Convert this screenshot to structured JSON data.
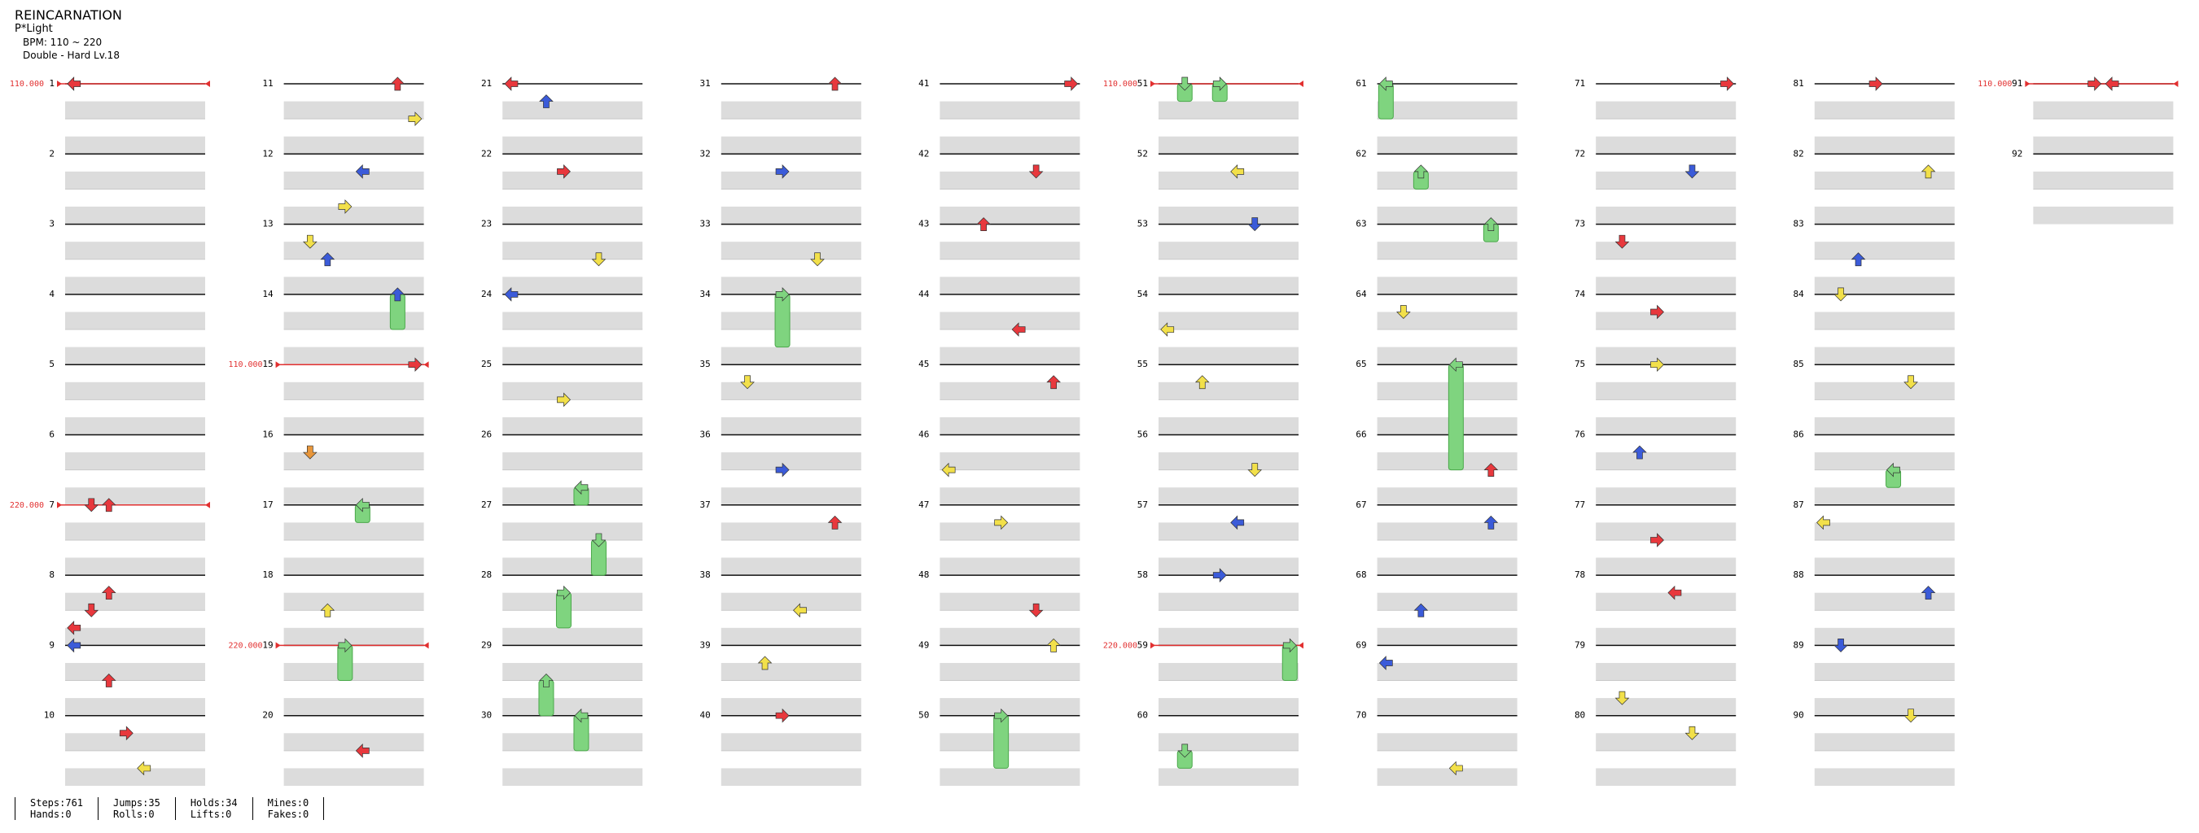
{
  "song": {
    "title": "REINCARNATION",
    "artist": "P*Light",
    "bpm_label": "BPM: 110 ~ 220",
    "difficulty_label": "Double - Hard Lv.18"
  },
  "chart_layout": {
    "type": "stepchart",
    "total_measures": 92,
    "measures_per_column": 10,
    "lanes": 8
  },
  "bpm_changes": [
    {
      "measure": 1,
      "label": "110.000"
    },
    {
      "measure": 7,
      "label": "220.000"
    },
    {
      "measure": 15,
      "label": "110.000"
    },
    {
      "measure": 19,
      "label": "220.000"
    },
    {
      "measure": 51,
      "label": "110.000"
    },
    {
      "measure": 59,
      "label": "220.000"
    },
    {
      "measure": 91,
      "label": "110.000"
    }
  ],
  "notes_sample": [
    {
      "measure": 1,
      "beat": 0,
      "lane": 0,
      "color": "red"
    },
    {
      "measure": 7,
      "beat": 0,
      "lane": 1,
      "color": "red"
    },
    {
      "measure": 7,
      "beat": 0,
      "lane": 2,
      "color": "red"
    },
    {
      "measure": 8,
      "beat": 1,
      "lane": 2,
      "color": "red"
    },
    {
      "measure": 8,
      "beat": 2,
      "lane": 1,
      "color": "red"
    },
    {
      "measure": 8,
      "beat": 3,
      "lane": 0,
      "color": "red"
    },
    {
      "measure": 9,
      "beat": 0,
      "lane": 0,
      "color": "blue"
    },
    {
      "measure": 9,
      "beat": 2,
      "lane": 2,
      "color": "red"
    },
    {
      "measure": 10,
      "beat": 1,
      "lane": 3,
      "color": "red"
    },
    {
      "measure": 10,
      "beat": 3,
      "lane": 4,
      "color": "yellow"
    },
    {
      "measure": 11,
      "beat": 0,
      "lane": 6,
      "color": "red"
    },
    {
      "measure": 11,
      "beat": 2,
      "lane": 7,
      "color": "yellow"
    },
    {
      "measure": 12,
      "beat": 1,
      "lane": 4,
      "color": "blue"
    },
    {
      "measure": 12,
      "beat": 3,
      "lane": 3,
      "color": "yellow"
    },
    {
      "measure": 13,
      "beat": 1,
      "lane": 1,
      "color": "yellow"
    },
    {
      "measure": 13,
      "beat": 2,
      "lane": 2,
      "color": "blue"
    },
    {
      "measure": 14,
      "beat": 0,
      "lane": 6,
      "color": "blue",
      "hold": 2
    },
    {
      "measure": 15,
      "beat": 0,
      "lane": 7,
      "color": "red"
    },
    {
      "measure": 16,
      "beat": 1,
      "lane": 1,
      "color": "orange"
    },
    {
      "measure": 17,
      "beat": 0,
      "lane": 4,
      "color": "green",
      "hold": 1
    },
    {
      "measure": 18,
      "beat": 2,
      "lane": 2,
      "color": "yellow"
    },
    {
      "measure": 19,
      "beat": 0,
      "lane": 3,
      "color": "green",
      "hold": 2
    },
    {
      "measure": 20,
      "beat": 2,
      "lane": 4,
      "color": "red"
    },
    {
      "measure": 21,
      "beat": 0,
      "lane": 0,
      "color": "red"
    },
    {
      "measure": 21,
      "beat": 1,
      "lane": 2,
      "color": "blue"
    },
    {
      "measure": 22,
      "beat": 1,
      "lane": 3,
      "color": "red"
    },
    {
      "measure": 23,
      "beat": 2,
      "lane": 5,
      "color": "yellow"
    },
    {
      "measure": 24,
      "beat": 0,
      "lane": 0,
      "color": "blue"
    },
    {
      "measure": 25,
      "beat": 2,
      "lane": 3,
      "color": "yellow"
    },
    {
      "measure": 26,
      "beat": 3,
      "lane": 4,
      "color": "green",
      "hold": 1
    },
    {
      "measure": 27,
      "beat": 2,
      "lane": 5,
      "color": "green",
      "hold": 2
    },
    {
      "measure": 28,
      "beat": 1,
      "lane": 3,
      "color": "green",
      "hold": 2
    },
    {
      "measure": 29,
      "beat": 2,
      "lane": 2,
      "color": "green",
      "hold": 2
    },
    {
      "measure": 30,
      "beat": 0,
      "lane": 4,
      "color": "green",
      "hold": 2
    },
    {
      "measure": 31,
      "beat": 0,
      "lane": 6,
      "color": "red"
    },
    {
      "measure": 32,
      "beat": 1,
      "lane": 3,
      "color": "blue"
    },
    {
      "measure": 33,
      "beat": 2,
      "lane": 5,
      "color": "yellow"
    },
    {
      "measure": 34,
      "beat": 0,
      "lane": 3,
      "color": "green",
      "hold": 3
    },
    {
      "measure": 35,
      "beat": 1,
      "lane": 1,
      "color": "yellow"
    },
    {
      "measure": 36,
      "beat": 2,
      "lane": 3,
      "color": "blue"
    },
    {
      "measure": 37,
      "beat": 1,
      "lane": 6,
      "color": "red"
    },
    {
      "measure": 38,
      "beat": 2,
      "lane": 4,
      "color": "yellow"
    },
    {
      "measure": 39,
      "beat": 1,
      "lane": 2,
      "color": "yellow"
    },
    {
      "measure": 40,
      "beat": 0,
      "lane": 3,
      "color": "red"
    },
    {
      "measure": 41,
      "beat": 0,
      "lane": 7,
      "color": "red"
    },
    {
      "measure": 42,
      "beat": 1,
      "lane": 5,
      "color": "red"
    },
    {
      "measure": 43,
      "beat": 0,
      "lane": 2,
      "color": "red"
    },
    {
      "measure": 44,
      "beat": 2,
      "lane": 4,
      "color": "red"
    },
    {
      "measure": 45,
      "beat": 1,
      "lane": 6,
      "color": "red"
    },
    {
      "measure": 46,
      "beat": 2,
      "lane": 0,
      "color": "yellow"
    },
    {
      "measure": 47,
      "beat": 1,
      "lane": 3,
      "color": "yellow"
    },
    {
      "measure": 48,
      "beat": 2,
      "lane": 5,
      "color": "red"
    },
    {
      "measure": 49,
      "beat": 0,
      "lane": 6,
      "color": "yellow"
    },
    {
      "measure": 50,
      "beat": 0,
      "lane": 3,
      "color": "green",
      "hold": 3
    },
    {
      "measure": 51,
      "beat": 0,
      "lane": 1,
      "color": "green",
      "hold": 1
    },
    {
      "measure": 51,
      "beat": 0,
      "lane": 3,
      "color": "green",
      "hold": 1
    },
    {
      "measure": 52,
      "beat": 1,
      "lane": 4,
      "color": "yellow"
    },
    {
      "measure": 53,
      "beat": 0,
      "lane": 5,
      "color": "blue"
    },
    {
      "measure": 54,
      "beat": 2,
      "lane": 0,
      "color": "yellow"
    },
    {
      "measure": 55,
      "beat": 1,
      "lane": 2,
      "color": "yellow"
    },
    {
      "measure": 56,
      "beat": 2,
      "lane": 5,
      "color": "yellow"
    },
    {
      "measure": 57,
      "beat": 1,
      "lane": 4,
      "color": "blue"
    },
    {
      "measure": 58,
      "beat": 0,
      "lane": 3,
      "color": "blue"
    },
    {
      "measure": 59,
      "beat": 0,
      "lane": 7,
      "color": "green",
      "hold": 2
    },
    {
      "measure": 60,
      "beat": 2,
      "lane": 1,
      "color": "green",
      "hold": 1
    },
    {
      "measure": 61,
      "beat": 0,
      "lane": 0,
      "color": "green",
      "hold": 2
    },
    {
      "measure": 62,
      "beat": 1,
      "lane": 2,
      "color": "green",
      "hold": 1
    },
    {
      "measure": 63,
      "beat": 0,
      "lane": 6,
      "color": "green",
      "hold": 1
    },
    {
      "measure": 64,
      "beat": 1,
      "lane": 1,
      "color": "yellow"
    },
    {
      "measure": 65,
      "beat": 0,
      "lane": 4,
      "color": "green",
      "hold": 6
    },
    {
      "measure": 66,
      "beat": 2,
      "lane": 6,
      "color": "red"
    },
    {
      "measure": 67,
      "beat": 1,
      "lane": 6,
      "color": "blue"
    },
    {
      "measure": 68,
      "beat": 2,
      "lane": 2,
      "color": "blue"
    },
    {
      "measure": 69,
      "beat": 1,
      "lane": 0,
      "color": "blue"
    },
    {
      "measure": 70,
      "beat": 3,
      "lane": 4,
      "color": "yellow"
    },
    {
      "measure": 71,
      "beat": 0,
      "lane": 7,
      "color": "red"
    },
    {
      "measure": 72,
      "beat": 1,
      "lane": 5,
      "color": "blue"
    },
    {
      "measure": 73,
      "beat": 1,
      "lane": 1,
      "color": "red"
    },
    {
      "measure": 74,
      "beat": 1,
      "lane": 3,
      "color": "red"
    },
    {
      "measure": 75,
      "beat": 0,
      "lane": 3,
      "color": "yellow"
    },
    {
      "measure": 76,
      "beat": 1,
      "lane": 2,
      "color": "blue"
    },
    {
      "measure": 77,
      "beat": 2,
      "lane": 3,
      "color": "red"
    },
    {
      "measure": 78,
      "beat": 1,
      "lane": 4,
      "color": "red"
    },
    {
      "measure": 79,
      "beat": 3,
      "lane": 1,
      "color": "yellow"
    },
    {
      "measure": 80,
      "beat": 1,
      "lane": 5,
      "color": "yellow"
    },
    {
      "measure": 81,
      "beat": 0,
      "lane": 3,
      "color": "red"
    },
    {
      "measure": 82,
      "beat": 1,
      "lane": 6,
      "color": "yellow"
    },
    {
      "measure": 83,
      "beat": 2,
      "lane": 2,
      "color": "blue"
    },
    {
      "measure": 84,
      "beat": 0,
      "lane": 1,
      "color": "yellow"
    },
    {
      "measure": 85,
      "beat": 1,
      "lane": 5,
      "color": "yellow"
    },
    {
      "measure": 86,
      "beat": 2,
      "lane": 4,
      "color": "green",
      "hold": 1
    },
    {
      "measure": 87,
      "beat": 1,
      "lane": 0,
      "color": "yellow"
    },
    {
      "measure": 88,
      "beat": 1,
      "lane": 6,
      "color": "blue"
    },
    {
      "measure": 89,
      "beat": 0,
      "lane": 1,
      "color": "blue"
    },
    {
      "measure": 90,
      "beat": 0,
      "lane": 5,
      "color": "yellow"
    },
    {
      "measure": 91,
      "beat": 0,
      "lane": 3,
      "color": "red"
    },
    {
      "measure": 91,
      "beat": 0,
      "lane": 4,
      "color": "red"
    }
  ],
  "stats": {
    "steps": "Steps:761",
    "hands": "Hands:0",
    "jumps": "Jumps:35",
    "rolls": "Rolls:0",
    "holds": "Holds:34",
    "lifts": "Lifts:0",
    "mines": "Mines:0",
    "fakes": "Fakes:0"
  },
  "colors": {
    "red": "#e8383d",
    "blue": "#3b5bd9",
    "yellow": "#f2e04a",
    "green": "#7fd47f",
    "orange": "#e8963a",
    "bpm_line": "#e23030",
    "beat_band": "#dcdcdc"
  }
}
